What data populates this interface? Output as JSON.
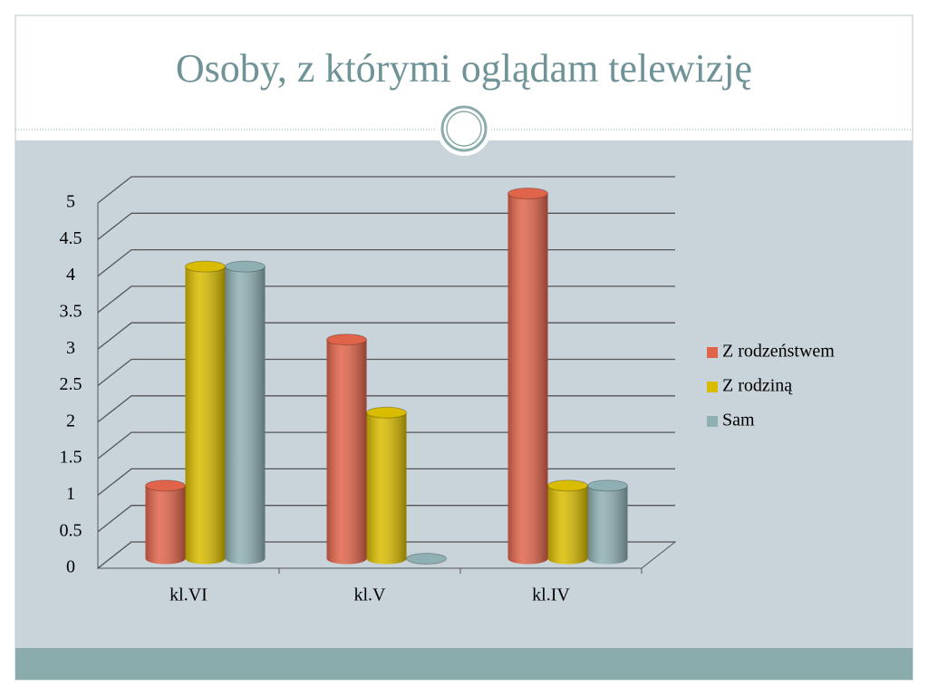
{
  "chart_data": {
    "type": "bar",
    "title": "Osoby, z którymi oglądam telewizję",
    "categories": [
      "kl.VI",
      "kl.V",
      "kl.IV"
    ],
    "series": [
      {
        "name": "Z rodzeństwem",
        "color": "#e0644a",
        "values": [
          1,
          3,
          5
        ]
      },
      {
        "name": "Z rodziną",
        "color": "#d9bc00",
        "values": [
          4,
          2,
          1
        ]
      },
      {
        "name": "Sam",
        "color": "#8fb0b3",
        "values": [
          4,
          0,
          1
        ]
      }
    ],
    "ylim": [
      0,
      5
    ],
    "yticks": [
      0,
      0.5,
      1,
      1.5,
      2,
      2.5,
      3,
      3.5,
      4,
      4.5,
      5
    ],
    "grid": true,
    "legend": "right"
  }
}
